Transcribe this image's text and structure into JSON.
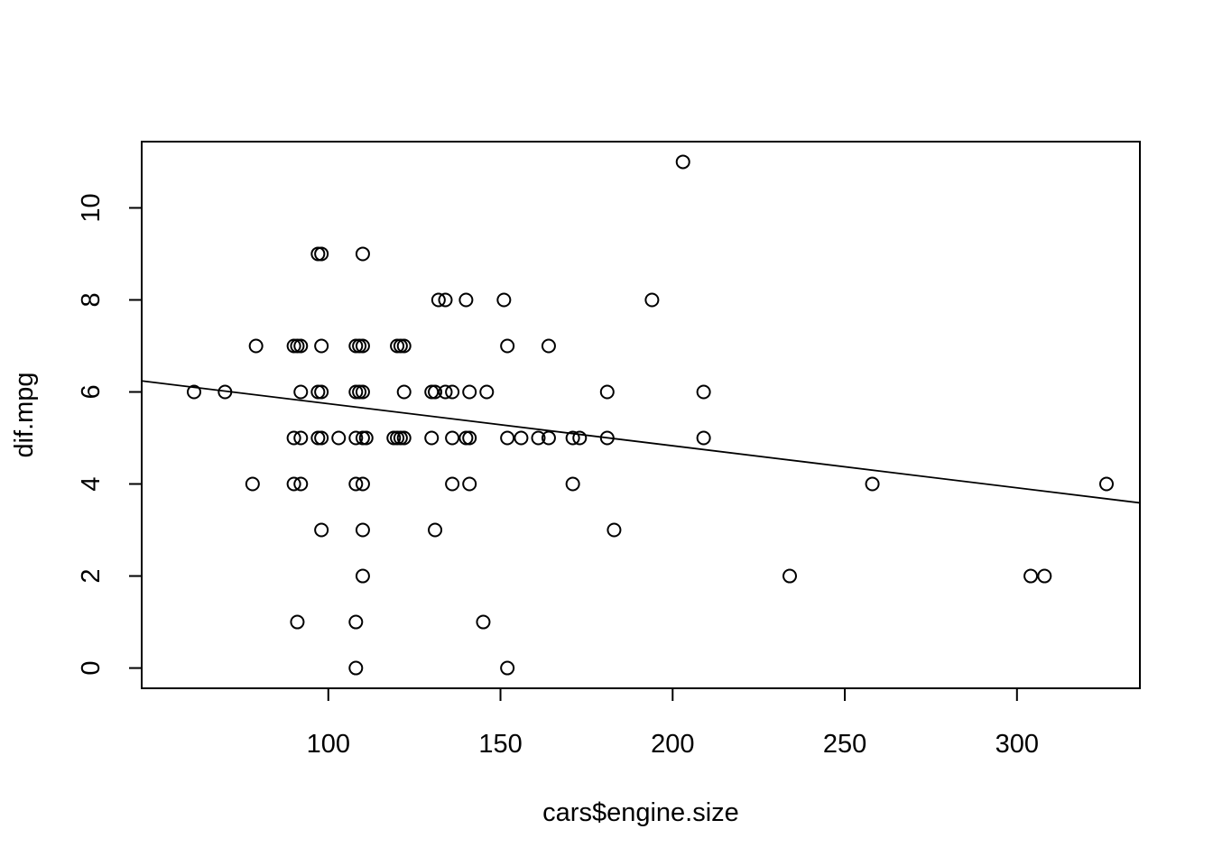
{
  "chart_data": {
    "type": "scatter",
    "title": "",
    "xlabel": "cars$engine.size",
    "ylabel": "dif.mpg",
    "x_ticks": [
      100,
      150,
      200,
      250,
      300
    ],
    "y_ticks": [
      0,
      2,
      4,
      6,
      8,
      10
    ],
    "xlim": [
      45.8,
      335.7
    ],
    "ylim": [
      -0.44,
      11.44
    ],
    "grid": false,
    "legend": "none",
    "points": [
      [
        61,
        6
      ],
      [
        70,
        6
      ],
      [
        79,
        7
      ],
      [
        78,
        4
      ],
      [
        90,
        7
      ],
      [
        91,
        7
      ],
      [
        92,
        7
      ],
      [
        90,
        5
      ],
      [
        92,
        5
      ],
      [
        90,
        4
      ],
      [
        92,
        4
      ],
      [
        91,
        1
      ],
      [
        92,
        6
      ],
      [
        97,
        9
      ],
      [
        98,
        9
      ],
      [
        98,
        7
      ],
      [
        97,
        6
      ],
      [
        98,
        6
      ],
      [
        97,
        5
      ],
      [
        98,
        5
      ],
      [
        98,
        3
      ],
      [
        103,
        5
      ],
      [
        108,
        7
      ],
      [
        110,
        7
      ],
      [
        109,
        7
      ],
      [
        108,
        6
      ],
      [
        110,
        6
      ],
      [
        109,
        6
      ],
      [
        108,
        5
      ],
      [
        110,
        5
      ],
      [
        111,
        5
      ],
      [
        108,
        4
      ],
      [
        110,
        4
      ],
      [
        110,
        3
      ],
      [
        110,
        2
      ],
      [
        108,
        1
      ],
      [
        108,
        0
      ],
      [
        110,
        9
      ],
      [
        120,
        7
      ],
      [
        121,
        7
      ],
      [
        122,
        7
      ],
      [
        120,
        5
      ],
      [
        121,
        5
      ],
      [
        122,
        5
      ],
      [
        119,
        5
      ],
      [
        122,
        6
      ],
      [
        130,
        6
      ],
      [
        131,
        6
      ],
      [
        130,
        5
      ],
      [
        131,
        3
      ],
      [
        132,
        8
      ],
      [
        134,
        8
      ],
      [
        134,
        6
      ],
      [
        136,
        6
      ],
      [
        136,
        5
      ],
      [
        136,
        4
      ],
      [
        140,
        8
      ],
      [
        140,
        5
      ],
      [
        141,
        5
      ],
      [
        141,
        6
      ],
      [
        141,
        4
      ],
      [
        146,
        6
      ],
      [
        145,
        1
      ],
      [
        151,
        8
      ],
      [
        152,
        7
      ],
      [
        152,
        5
      ],
      [
        152,
        0
      ],
      [
        156,
        5
      ],
      [
        161,
        5
      ],
      [
        164,
        7
      ],
      [
        164,
        5
      ],
      [
        171,
        5
      ],
      [
        171,
        4
      ],
      [
        173,
        5
      ],
      [
        181,
        6
      ],
      [
        181,
        5
      ],
      [
        183,
        3
      ],
      [
        194,
        8
      ],
      [
        203,
        11
      ],
      [
        209,
        6
      ],
      [
        209,
        5
      ],
      [
        234,
        2
      ],
      [
        258,
        4
      ],
      [
        304,
        2
      ],
      [
        308,
        2
      ],
      [
        326,
        4
      ]
    ],
    "regression_line": {
      "x": [
        45.8,
        335.7
      ],
      "y": [
        6.24,
        3.59
      ]
    }
  }
}
